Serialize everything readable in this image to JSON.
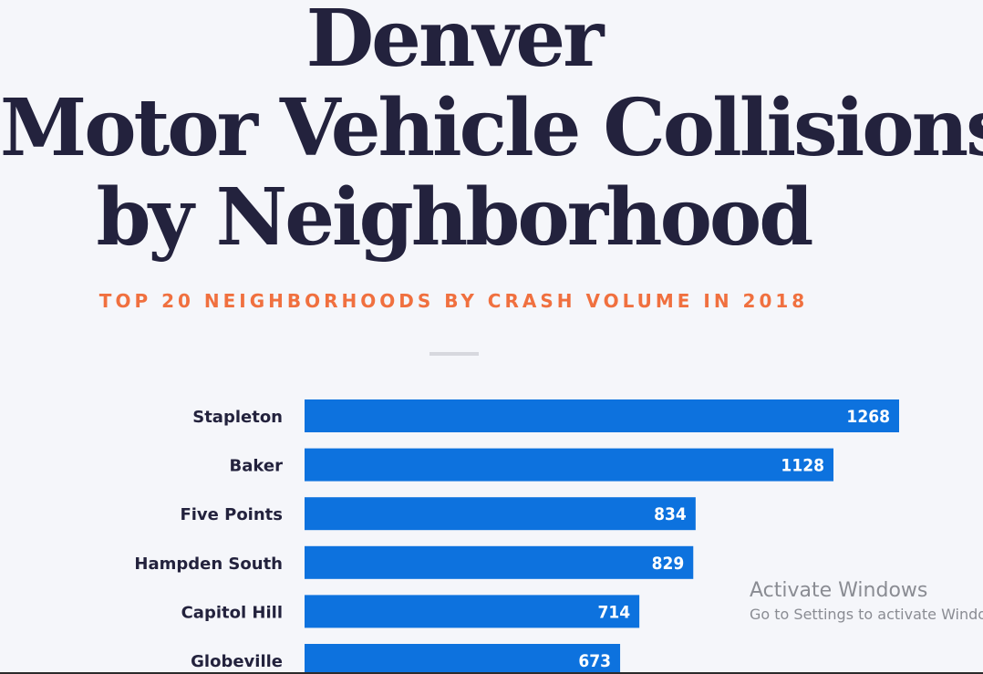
{
  "title_lines": [
    "Denver",
    "Motor Vehicle Collisions",
    "by Neighborhood"
  ],
  "subtitle": "TOP 20 NEIGHBORHOODS BY CRASH VOLUME IN 2018",
  "watermark": {
    "title": "Activate Windows",
    "subtitle": "Go to Settings to activate Windows."
  },
  "colors": {
    "bar": "#0d72de",
    "title": "#23223d",
    "subtitle": "#f0703f",
    "background": "#f5f6fa"
  },
  "chart_data": {
    "type": "bar",
    "orientation": "horizontal",
    "title": "Denver Motor Vehicle Collisions by Neighborhood",
    "subtitle": "TOP 20 NEIGHBORHOODS BY CRASH VOLUME IN 2018",
    "categories": [
      "Stapleton",
      "Baker",
      "Five Points",
      "Hampden South",
      "Capitol Hill",
      "Globeville"
    ],
    "values": [
      1268,
      1128,
      834,
      829,
      714,
      673
    ],
    "grid": false,
    "data_labels": true
  }
}
